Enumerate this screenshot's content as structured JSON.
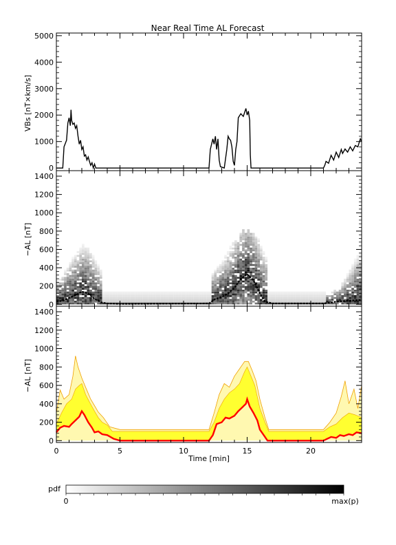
{
  "title": "Near Real Time AL Forecast",
  "chart_data": [
    {
      "type": "line",
      "ylabel": "VBs [nT×km/s]",
      "ylim": [
        -100,
        5100
      ],
      "yticks": [
        0,
        1000,
        2000,
        3000,
        4000,
        5000
      ],
      "xlim": [
        0,
        24
      ],
      "series": [
        {
          "color": "#000000",
          "points": [
            [
              0,
              0
            ],
            [
              0.5,
              0
            ],
            [
              0.6,
              800
            ],
            [
              0.8,
              1050
            ],
            [
              0.9,
              1700
            ],
            [
              1.0,
              1900
            ],
            [
              1.1,
              1600
            ],
            [
              1.15,
              2200
            ],
            [
              1.2,
              1800
            ],
            [
              1.3,
              1650
            ],
            [
              1.4,
              1700
            ],
            [
              1.5,
              1500
            ],
            [
              1.6,
              1600
            ],
            [
              1.7,
              1200
            ],
            [
              1.8,
              900
            ],
            [
              1.9,
              1050
            ],
            [
              2.0,
              700
            ],
            [
              2.1,
              800
            ],
            [
              2.2,
              450
            ],
            [
              2.3,
              500
            ],
            [
              2.4,
              300
            ],
            [
              2.5,
              420
            ],
            [
              2.6,
              250
            ],
            [
              2.7,
              100
            ],
            [
              2.8,
              200
            ],
            [
              2.9,
              0
            ],
            [
              3.0,
              150
            ],
            [
              3.1,
              0
            ],
            [
              4.5,
              0
            ],
            [
              12.0,
              0
            ],
            [
              12.1,
              700
            ],
            [
              12.3,
              1100
            ],
            [
              12.4,
              900
            ],
            [
              12.5,
              1200
            ],
            [
              12.6,
              700
            ],
            [
              12.7,
              1100
            ],
            [
              12.8,
              300
            ],
            [
              12.9,
              50
            ],
            [
              13.2,
              0
            ],
            [
              13.4,
              700
            ],
            [
              13.5,
              1200
            ],
            [
              13.6,
              1100
            ],
            [
              13.7,
              1050
            ],
            [
              13.8,
              800
            ],
            [
              13.9,
              250
            ],
            [
              14.0,
              100
            ],
            [
              14.1,
              700
            ],
            [
              14.2,
              1000
            ],
            [
              14.3,
              1900
            ],
            [
              14.5,
              2050
            ],
            [
              14.7,
              1950
            ],
            [
              14.8,
              2100
            ],
            [
              14.9,
              2250
            ],
            [
              15.0,
              2000
            ],
            [
              15.1,
              2150
            ],
            [
              15.2,
              1800
            ],
            [
              15.25,
              500
            ],
            [
              15.3,
              0
            ],
            [
              21.0,
              0
            ],
            [
              21.1,
              100
            ],
            [
              21.2,
              250
            ],
            [
              21.4,
              180
            ],
            [
              21.6,
              480
            ],
            [
              21.8,
              300
            ],
            [
              22.0,
              600
            ],
            [
              22.2,
              400
            ],
            [
              22.4,
              700
            ],
            [
              22.5,
              550
            ],
            [
              22.7,
              720
            ],
            [
              22.9,
              600
            ],
            [
              23.1,
              800
            ],
            [
              23.3,
              650
            ],
            [
              23.5,
              850
            ],
            [
              23.7,
              800
            ],
            [
              23.9,
              1100
            ],
            [
              24.0,
              1000
            ]
          ]
        }
      ]
    },
    {
      "type": "heatmap",
      "ylabel": "−AL [nT]",
      "ylim": [
        -20,
        1460
      ],
      "yticks": [
        0,
        200,
        400,
        600,
        800,
        1000,
        1200,
        1400
      ],
      "xlim": [
        0,
        24
      ],
      "colorscale": [
        "#ffffff",
        "#000000"
      ],
      "event_windows": [
        [
          0,
          3.6,
          2.1,
          140,
          600
        ],
        [
          12.0,
          16.4,
          15.0,
          260,
          760
        ],
        [
          21.0,
          24.0,
          24.0,
          50,
          600
        ]
      ],
      "quiet_band": [
        0,
        140
      ],
      "mode_line": [
        [
          0,
          30
        ],
        [
          0.5,
          40
        ],
        [
          1,
          70
        ],
        [
          1.5,
          100
        ],
        [
          2,
          140
        ],
        [
          2.5,
          120
        ],
        [
          3,
          60
        ],
        [
          3.6,
          20
        ],
        [
          4,
          10
        ],
        [
          5,
          5
        ],
        [
          12,
          10
        ],
        [
          12.5,
          60
        ],
        [
          13,
          80
        ],
        [
          13.5,
          120
        ],
        [
          14,
          180
        ],
        [
          14.5,
          280
        ],
        [
          15,
          330
        ],
        [
          15.5,
          260
        ],
        [
          16,
          120
        ],
        [
          16.4,
          30
        ],
        [
          17,
          10
        ],
        [
          21,
          10
        ],
        [
          22,
          30
        ],
        [
          23,
          40
        ],
        [
          24,
          50
        ]
      ]
    },
    {
      "type": "area",
      "xlabel": "Time [min]",
      "ylabel": "−AL [nT]",
      "ylim": [
        -20,
        1460
      ],
      "yticks": [
        0,
        200,
        400,
        600,
        800,
        1000,
        1200,
        1400
      ],
      "xlim": [
        0,
        24
      ],
      "xticks": [
        0,
        5,
        10,
        15,
        20
      ],
      "band_colors": {
        "outer": "#fff8b0",
        "inner": "#ffff30",
        "outline": "#f0a000"
      },
      "series": [
        {
          "name": "",
          "color": "#ff0000",
          "role": "median",
          "points": [
            [
              0,
              90
            ],
            [
              0.3,
              140
            ],
            [
              0.6,
              160
            ],
            [
              1.0,
              150
            ],
            [
              1.2,
              180
            ],
            [
              1.5,
              220
            ],
            [
              1.8,
              260
            ],
            [
              2.0,
              320
            ],
            [
              2.2,
              280
            ],
            [
              2.5,
              200
            ],
            [
              2.8,
              140
            ],
            [
              3.0,
              90
            ],
            [
              3.3,
              100
            ],
            [
              3.6,
              70
            ],
            [
              4.0,
              60
            ],
            [
              4.5,
              20
            ],
            [
              5.0,
              0
            ],
            [
              12.0,
              0
            ],
            [
              12.3,
              60
            ],
            [
              12.6,
              180
            ],
            [
              13.0,
              200
            ],
            [
              13.3,
              250
            ],
            [
              13.6,
              240
            ],
            [
              14.0,
              270
            ],
            [
              14.3,
              320
            ],
            [
              14.6,
              360
            ],
            [
              14.9,
              400
            ],
            [
              15.0,
              450
            ],
            [
              15.2,
              370
            ],
            [
              15.5,
              300
            ],
            [
              15.8,
              220
            ],
            [
              16.0,
              120
            ],
            [
              16.3,
              60
            ],
            [
              16.6,
              0
            ],
            [
              21.0,
              0
            ],
            [
              21.3,
              20
            ],
            [
              21.6,
              40
            ],
            [
              22.0,
              30
            ],
            [
              22.3,
              60
            ],
            [
              22.6,
              50
            ],
            [
              23.0,
              70
            ],
            [
              23.3,
              60
            ],
            [
              23.6,
              90
            ],
            [
              24.0,
              80
            ]
          ]
        },
        {
          "name": "",
          "role": "inner_band_upper",
          "points": [
            [
              0,
              180
            ],
            [
              0.4,
              300
            ],
            [
              0.8,
              400
            ],
            [
              1.2,
              450
            ],
            [
              1.5,
              560
            ],
            [
              1.8,
              600
            ],
            [
              2.0,
              620
            ],
            [
              2.3,
              500
            ],
            [
              2.6,
              420
            ],
            [
              3.0,
              320
            ],
            [
              3.3,
              250
            ],
            [
              3.6,
              200
            ],
            [
              4.0,
              170
            ],
            [
              4.4,
              100
            ],
            [
              5.0,
              100
            ],
            [
              12.0,
              100
            ],
            [
              12.4,
              200
            ],
            [
              12.8,
              350
            ],
            [
              13.2,
              450
            ],
            [
              13.6,
              520
            ],
            [
              14.0,
              560
            ],
            [
              14.4,
              620
            ],
            [
              14.8,
              750
            ],
            [
              15.0,
              800
            ],
            [
              15.3,
              700
            ],
            [
              15.6,
              600
            ],
            [
              16.0,
              350
            ],
            [
              16.4,
              200
            ],
            [
              16.7,
              100
            ],
            [
              21.0,
              100
            ],
            [
              21.5,
              150
            ],
            [
              22.0,
              180
            ],
            [
              22.5,
              250
            ],
            [
              23.0,
              300
            ],
            [
              23.5,
              280
            ],
            [
              24.0,
              250
            ]
          ]
        },
        {
          "name": "",
          "role": "outer_band_upper",
          "points": [
            [
              0,
              300
            ],
            [
              0.3,
              550
            ],
            [
              0.6,
              450
            ],
            [
              1.0,
              500
            ],
            [
              1.3,
              700
            ],
            [
              1.5,
              920
            ],
            [
              1.7,
              800
            ],
            [
              2.0,
              680
            ],
            [
              2.3,
              580
            ],
            [
              2.7,
              450
            ],
            [
              3.0,
              380
            ],
            [
              3.3,
              310
            ],
            [
              3.7,
              250
            ],
            [
              4.2,
              150
            ],
            [
              5.0,
              120
            ],
            [
              12.0,
              120
            ],
            [
              12.4,
              300
            ],
            [
              12.8,
              500
            ],
            [
              13.2,
              620
            ],
            [
              13.6,
              580
            ],
            [
              14.0,
              700
            ],
            [
              14.4,
              780
            ],
            [
              14.8,
              860
            ],
            [
              15.1,
              860
            ],
            [
              15.4,
              760
            ],
            [
              15.7,
              650
            ],
            [
              16.0,
              450
            ],
            [
              16.4,
              250
            ],
            [
              16.7,
              120
            ],
            [
              21.0,
              120
            ],
            [
              21.5,
              200
            ],
            [
              22.0,
              300
            ],
            [
              22.4,
              480
            ],
            [
              22.7,
              650
            ],
            [
              23.0,
              400
            ],
            [
              23.4,
              560
            ],
            [
              23.7,
              350
            ],
            [
              24.0,
              600
            ]
          ]
        }
      ]
    }
  ],
  "colorbar": {
    "label": "pdf",
    "min_label": "0",
    "max_label": "max(p)"
  }
}
